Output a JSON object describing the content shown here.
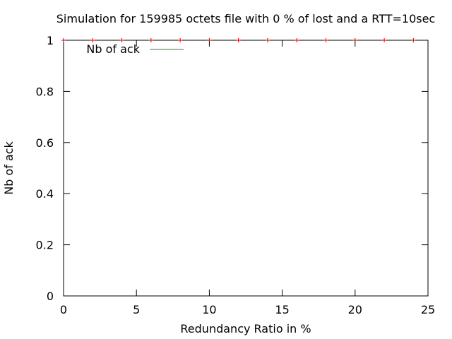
{
  "chart_data": {
    "type": "scatter",
    "title": "Simulation for 159985 octets file with 0 % of lost and a RTT=10sec",
    "xlabel": "Redundancy Ratio in %",
    "ylabel": "Nb of ack",
    "xlim": [
      0,
      25
    ],
    "ylim": [
      0,
      1
    ],
    "xticks": [
      "0",
      "5",
      "10",
      "15",
      "20",
      "25"
    ],
    "yticks": [
      "0",
      "0.2",
      "0.4",
      "0.6",
      "0.8",
      "1"
    ],
    "grid": false,
    "legend_position": "top-left",
    "series": [
      {
        "name": "Nb of ack",
        "legend_color": "#00a000",
        "marker_color": "#d00000",
        "marker": "plus",
        "x": [
          0,
          2,
          4,
          6,
          8,
          10,
          12,
          14,
          16,
          18,
          20,
          22,
          24
        ],
        "y": [
          1,
          1,
          1,
          1,
          1,
          1,
          1,
          1,
          1,
          1,
          1,
          1,
          1
        ]
      }
    ]
  }
}
